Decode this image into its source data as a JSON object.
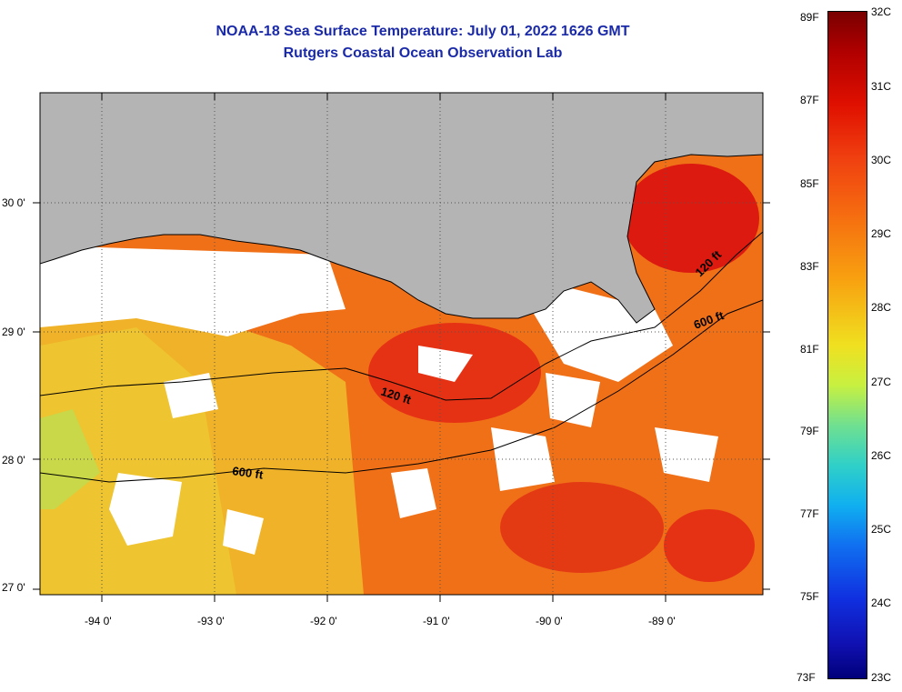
{
  "title_line1": "NOAA-18 Sea Surface Temperature:  July 01, 2022 1626 GMT",
  "title_line2": "Rutgers Coastal Ocean Observation Lab",
  "lat_labels": [
    "30 0'",
    "29 0'",
    "28 0'",
    "27 0'"
  ],
  "lon_labels": [
    "-94 0'",
    "-93 0'",
    "-92 0'",
    "-91 0'",
    "-90 0'",
    "-89 0'"
  ],
  "contours": {
    "c120a": "120 ft",
    "c120b": "120 ft",
    "c600a": "600 ft",
    "c600b": "600 ft"
  },
  "colorbar": {
    "f_labels": [
      "89F",
      "87F",
      "85F",
      "83F",
      "81F",
      "79F",
      "77F",
      "75F",
      "73F"
    ],
    "c_labels": [
      "32C",
      "31C",
      "30C",
      "29C",
      "28C",
      "27C",
      "26C",
      "25C",
      "24C",
      "23C"
    ]
  },
  "colors": {
    "land": "#b4b4b4",
    "title": "#1a2aa8",
    "warm": "#f07018",
    "hot": "#e02010",
    "mild": "#f0c828"
  }
}
